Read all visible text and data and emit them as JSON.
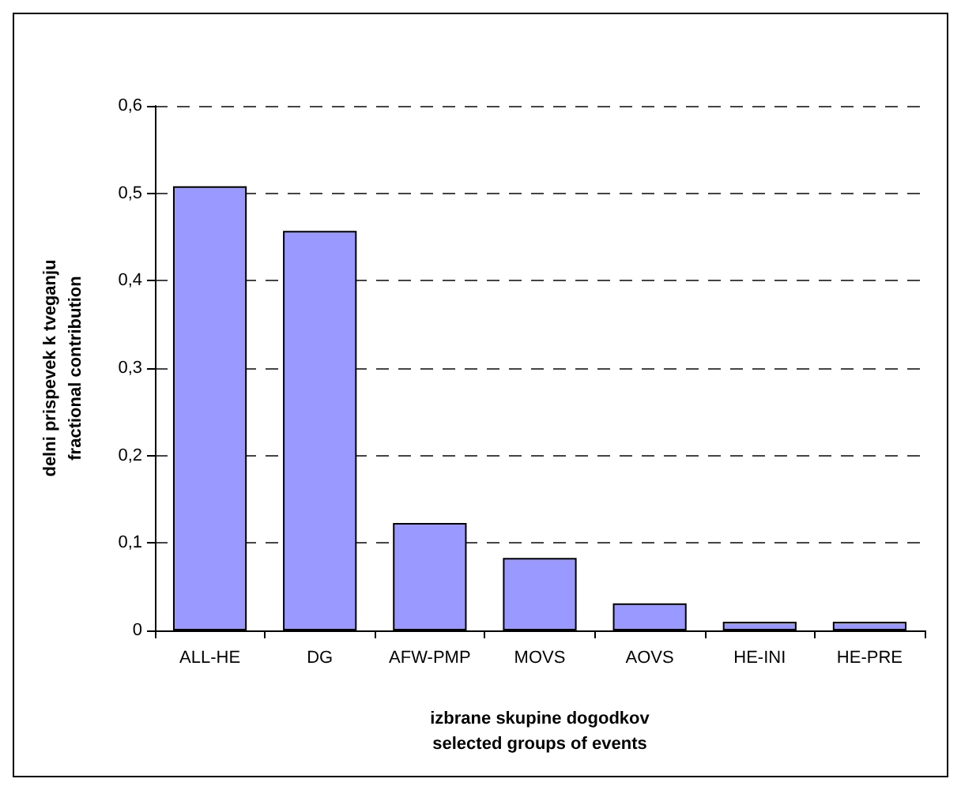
{
  "chart_data": {
    "type": "bar",
    "xlabel": "izbrane skupine dogodkov\nselected groups of events",
    "ylabel": "delni prispevek k tveganju\nfractional contribution",
    "categories": [
      "ALL-HE",
      "DG",
      "AFW-PMP",
      "MOVS",
      "AOVS",
      "HE-INI",
      "HE-PRE"
    ],
    "values": [
      0.508,
      0.457,
      0.123,
      0.083,
      0.031,
      0.01,
      0.01
    ],
    "color": "#9999ff",
    "ylim": [
      0,
      0.6
    ],
    "yticks": [
      {
        "value": 0,
        "label": "0"
      },
      {
        "value": 0.1,
        "label": "0,1"
      },
      {
        "value": 0.2,
        "label": "0,2"
      },
      {
        "value": 0.3,
        "label": "0,3"
      },
      {
        "value": 0.4,
        "label": "0,4"
      },
      {
        "value": 0.5,
        "label": "0,5"
      },
      {
        "value": 0.6,
        "label": "0,6"
      }
    ],
    "grid": "y"
  }
}
